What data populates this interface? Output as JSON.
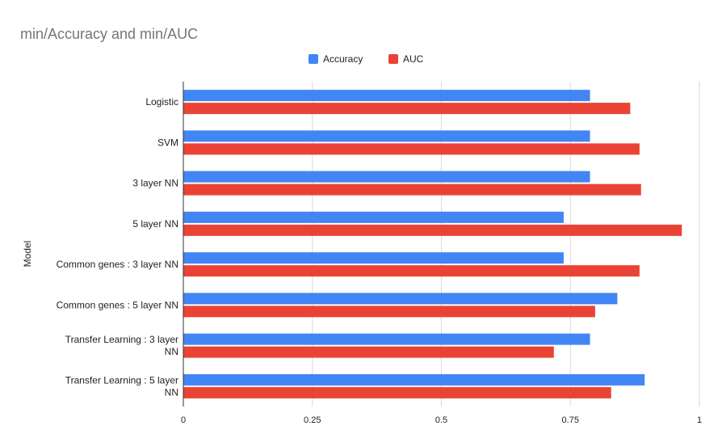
{
  "chart_data": {
    "type": "bar",
    "orientation": "horizontal",
    "title": "min/Accuracy and min/AUC",
    "ylabel": "Model",
    "xlabel": "",
    "categories": [
      [
        "Logistic"
      ],
      [
        "SVM"
      ],
      [
        "3 layer NN"
      ],
      [
        "5 layer NN"
      ],
      [
        "Common genes : 3 layer NN"
      ],
      [
        "Common genes : 5 layer NN"
      ],
      [
        "Transfer Learning : 3 layer",
        "NN"
      ],
      [
        "Transfer Learning : 5 layer",
        "NN"
      ]
    ],
    "series": [
      {
        "name": "Accuracy",
        "color": "#4285F4",
        "values": [
          0.788,
          0.788,
          0.788,
          0.737,
          0.737,
          0.841,
          0.788,
          0.894
        ]
      },
      {
        "name": "AUC",
        "color": "#EA4335",
        "values": [
          0.866,
          0.884,
          0.887,
          0.966,
          0.884,
          0.798,
          0.718,
          0.829
        ]
      }
    ],
    "xlim": [
      0,
      1
    ],
    "xticks": [
      "0",
      "0.25",
      "0.5",
      "0.75",
      "1"
    ],
    "xtick_values": [
      0,
      0.25,
      0.5,
      0.75,
      1
    ],
    "grid": true,
    "legend_position": "top"
  }
}
